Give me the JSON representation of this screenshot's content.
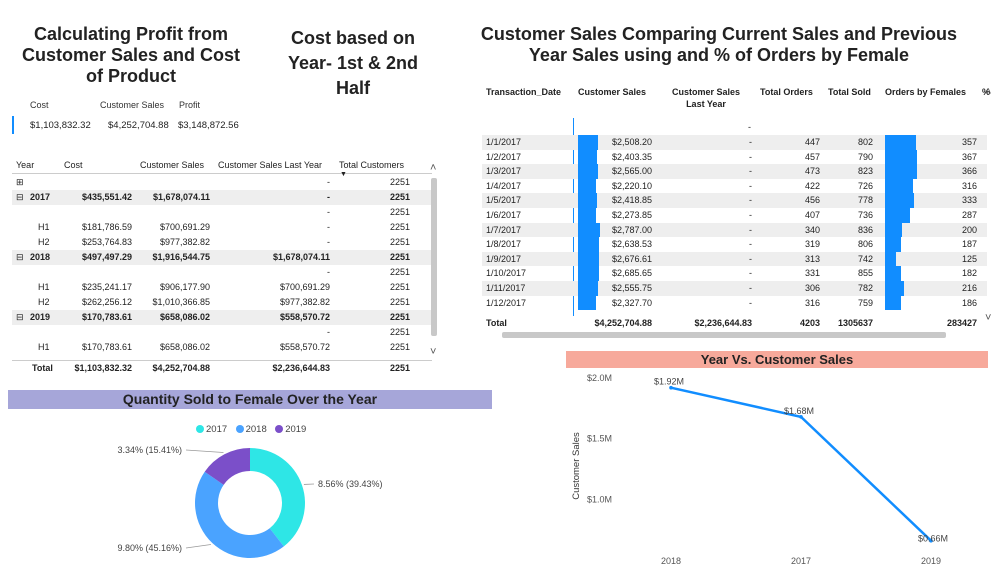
{
  "profit_title": "Calculating Profit from Customer Sales and Cost of Product",
  "half_title": "Cost based on Year- 1st & 2nd Half",
  "compare_title": "Customer Sales Comparing Current Sales and Previous Year Sales using and % of Orders by Female",
  "profit_card": {
    "headers": [
      "Cost",
      "Customer Sales",
      "Profit"
    ],
    "values": [
      "$1,103,832.32",
      "$4,252,704.88",
      "$3,148,872.56"
    ]
  },
  "matrix": {
    "headers": [
      "Year",
      "Cost",
      "Customer Sales",
      "Customer Sales Last Year",
      "Total Customers"
    ],
    "rows": [
      {
        "expand": "⊞",
        "year": "",
        "cost": "",
        "sales": "",
        "last": "-",
        "cust": "2251",
        "bold": false
      },
      {
        "expand": "⊟",
        "year": "2017",
        "cost": "$435,551.42",
        "sales": "$1,678,074.11",
        "last": "-",
        "cust": "2251",
        "bold": true
      },
      {
        "expand": "",
        "year": "",
        "cost": "",
        "sales": "",
        "last": "-",
        "cust": "2251",
        "bold": false
      },
      {
        "expand": "",
        "year": "H1",
        "cost": "$181,786.59",
        "sales": "$700,691.29",
        "last": "-",
        "cust": "2251",
        "bold": false
      },
      {
        "expand": "",
        "year": "H2",
        "cost": "$253,764.83",
        "sales": "$977,382.82",
        "last": "-",
        "cust": "2251",
        "bold": false
      },
      {
        "expand": "⊟",
        "year": "2018",
        "cost": "$497,497.29",
        "sales": "$1,916,544.75",
        "last": "$1,678,074.11",
        "cust": "2251",
        "bold": true
      },
      {
        "expand": "",
        "year": "",
        "cost": "",
        "sales": "",
        "last": "-",
        "cust": "2251",
        "bold": false
      },
      {
        "expand": "",
        "year": "H1",
        "cost": "$235,241.17",
        "sales": "$906,177.90",
        "last": "$700,691.29",
        "cust": "2251",
        "bold": false
      },
      {
        "expand": "",
        "year": "H2",
        "cost": "$262,256.12",
        "sales": "$1,010,366.85",
        "last": "$977,382.82",
        "cust": "2251",
        "bold": false
      },
      {
        "expand": "⊟",
        "year": "2019",
        "cost": "$170,783.61",
        "sales": "$658,086.02",
        "last": "$558,570.72",
        "cust": "2251",
        "bold": true
      },
      {
        "expand": "",
        "year": "",
        "cost": "",
        "sales": "",
        "last": "-",
        "cust": "2251",
        "bold": false
      },
      {
        "expand": "",
        "year": "H1",
        "cost": "$170,783.61",
        "sales": "$658,086.02",
        "last": "$558,570.72",
        "cust": "2251",
        "bold": false
      }
    ],
    "total": {
      "label": "Total",
      "cost": "$1,103,832.32",
      "sales": "$4,252,704.88",
      "last": "$2,236,644.83",
      "cust": "2251"
    },
    "sort_indicator": "▼",
    "scroll_up": "˄",
    "scroll_down": "˅"
  },
  "transactions": {
    "headers": [
      "Transaction_Date",
      "Customer Sales",
      "Customer Sales Last Year",
      "Total Orders",
      "Total Sold",
      "Orders by Females",
      "%"
    ],
    "first_row_dash": "-",
    "rows": [
      {
        "date": "1/1/2017",
        "sales": "$2,508.20",
        "sales_val": 2508.2,
        "last": "-",
        "orders": "447",
        "sold": "802",
        "female": "357",
        "female_val": 357
      },
      {
        "date": "1/2/2017",
        "sales": "$2,403.35",
        "sales_val": 2403.35,
        "last": "-",
        "orders": "457",
        "sold": "790",
        "female": "367",
        "female_val": 367
      },
      {
        "date": "1/3/2017",
        "sales": "$2,565.00",
        "sales_val": 2565.0,
        "last": "-",
        "orders": "473",
        "sold": "823",
        "female": "366",
        "female_val": 366
      },
      {
        "date": "1/4/2017",
        "sales": "$2,220.10",
        "sales_val": 2220.1,
        "last": "-",
        "orders": "422",
        "sold": "726",
        "female": "316",
        "female_val": 316
      },
      {
        "date": "1/5/2017",
        "sales": "$2,418.85",
        "sales_val": 2418.85,
        "last": "-",
        "orders": "456",
        "sold": "778",
        "female": "333",
        "female_val": 333
      },
      {
        "date": "1/6/2017",
        "sales": "$2,273.85",
        "sales_val": 2273.85,
        "last": "-",
        "orders": "407",
        "sold": "736",
        "female": "287",
        "female_val": 287
      },
      {
        "date": "1/7/2017",
        "sales": "$2,787.00",
        "sales_val": 2787.0,
        "last": "-",
        "orders": "340",
        "sold": "836",
        "female": "200",
        "female_val": 200
      },
      {
        "date": "1/8/2017",
        "sales": "$2,638.53",
        "sales_val": 2638.53,
        "last": "-",
        "orders": "319",
        "sold": "806",
        "female": "187",
        "female_val": 187
      },
      {
        "date": "1/9/2017",
        "sales": "$2,676.61",
        "sales_val": 2676.61,
        "last": "-",
        "orders": "313",
        "sold": "742",
        "female": "125",
        "female_val": 125
      },
      {
        "date": "1/10/2017",
        "sales": "$2,685.65",
        "sales_val": 2685.65,
        "last": "-",
        "orders": "331",
        "sold": "855",
        "female": "182",
        "female_val": 182
      },
      {
        "date": "1/11/2017",
        "sales": "$2,555.75",
        "sales_val": 2555.75,
        "last": "-",
        "orders": "306",
        "sold": "782",
        "female": "216",
        "female_val": 216
      },
      {
        "date": "1/12/2017",
        "sales": "$2,327.70",
        "sales_val": 2327.7,
        "last": "-",
        "orders": "316",
        "sold": "759",
        "female": "186",
        "female_val": 186
      }
    ],
    "total": {
      "label": "Total",
      "sales": "$4,252,704.88",
      "last": "$2,236,644.83",
      "orders": "4203",
      "sold": "1305637",
      "female": "283427"
    },
    "scroll_up": "˄",
    "scroll_down": "˅"
  },
  "donut_title": "Quantity Sold to Female Over the Year",
  "line_title": "Year Vs. Customer Sales",
  "colors": {
    "accent": "#118dff",
    "donut_banner": "#a6a6d9",
    "line_banner": "#f7a99b",
    "y2017": "#2ee6e6",
    "y2018": "#4aa3ff",
    "y2019": "#7b4fc9"
  },
  "chart_data": [
    {
      "type": "pie",
      "variant": "donut",
      "title": "Quantity Sold to Female Over the Year",
      "legend": [
        "2017",
        "2018",
        "2019"
      ],
      "legend_position": "top-center",
      "slices": [
        {
          "name": "2017",
          "value": 8.56,
          "label": "8.56% (39.43%)"
        },
        {
          "name": "2018",
          "value": 9.8,
          "label": "9.80% (45.16%)"
        },
        {
          "name": "2019",
          "value": 3.34,
          "label": "3.34% (15.41%)"
        }
      ]
    },
    {
      "type": "line",
      "title": "Year Vs. Customer Sales",
      "xlabel": "",
      "ylabel": "Customer Sales",
      "categories": [
        "2018",
        "2017",
        "2019"
      ],
      "values": [
        1.92,
        1.68,
        0.66
      ],
      "data_labels": [
        "$1.92M",
        "$1.68M",
        "$0.66M"
      ],
      "y_ticks": [
        "$2.0M",
        "$1.5M",
        "$1.0M"
      ],
      "y_tick_values": [
        2.0,
        1.5,
        1.0
      ],
      "ylim": [
        0.6,
        2.0
      ],
      "grid": false
    }
  ]
}
